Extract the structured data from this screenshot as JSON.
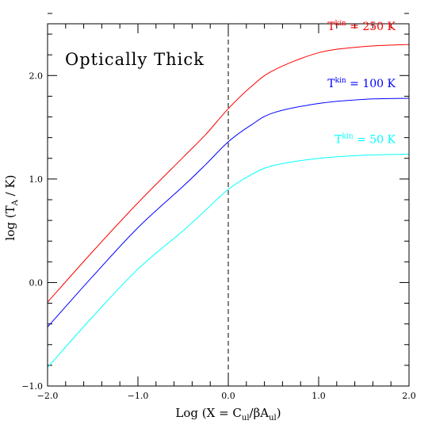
{
  "chart_data": {
    "type": "line",
    "title": "",
    "annotation": "Optically Thick",
    "xlabel": {
      "prefix": "Log (X = C",
      "sub1": "ul",
      "mid": "/βA",
      "sub2": "ul",
      "suffix": ")"
    },
    "ylabel": {
      "prefix": "log (T",
      "sub": "A",
      "suffix": " / K)"
    },
    "xlim": [
      -2.0,
      2.0
    ],
    "ylim": [
      -1.0,
      2.5
    ],
    "xticks": [
      -2.0,
      -1.0,
      0.0,
      1.0,
      2.0
    ],
    "xtick_labels": [
      "−2.0",
      "−1.0",
      "0.0",
      "1.0",
      "2.0"
    ],
    "yticks": [
      -1.0,
      0.0,
      1.0,
      2.0
    ],
    "ytick_labels": [
      "−1.0",
      "0.0",
      "1.0",
      "2.0"
    ],
    "x_minor_step": 0.2,
    "y_minor_step": 0.2,
    "reference_line": {
      "x": 0.0,
      "style": "dashed"
    },
    "grid": false,
    "series": [
      {
        "name": "T^kin = 250 K",
        "label_base": "T",
        "label_sup": "kin",
        "label_rest": " = 250 K",
        "color": "#ff0000",
        "x": [
          -2.0,
          -1.5,
          -1.0,
          -0.5,
          -0.25,
          0.0,
          0.25,
          0.5,
          1.0,
          1.5,
          2.0
        ],
        "y": [
          -0.19,
          0.3,
          0.77,
          1.21,
          1.43,
          1.68,
          1.89,
          2.05,
          2.22,
          2.28,
          2.3
        ]
      },
      {
        "name": "T^kin = 100 K",
        "label_base": "T",
        "label_sup": "kin",
        "label_rest": " = 100 K",
        "color": "#0000ff",
        "x": [
          -2.0,
          -1.5,
          -1.0,
          -0.5,
          -0.25,
          0.0,
          0.25,
          0.5,
          1.0,
          1.5,
          2.0
        ],
        "y": [
          -0.43,
          0.06,
          0.53,
          0.93,
          1.14,
          1.36,
          1.52,
          1.64,
          1.73,
          1.77,
          1.78
        ]
      },
      {
        "name": "T^kin = 50 K",
        "label_base": "T",
        "label_sup": "kin",
        "label_rest": " = 50 K",
        "color": "#00ffff",
        "x": [
          -2.0,
          -1.5,
          -1.0,
          -0.5,
          -0.25,
          0.0,
          0.25,
          0.5,
          1.0,
          1.5,
          2.0
        ],
        "y": [
          -0.82,
          -0.33,
          0.13,
          0.5,
          0.7,
          0.9,
          1.04,
          1.13,
          1.2,
          1.23,
          1.24
        ]
      }
    ]
  }
}
